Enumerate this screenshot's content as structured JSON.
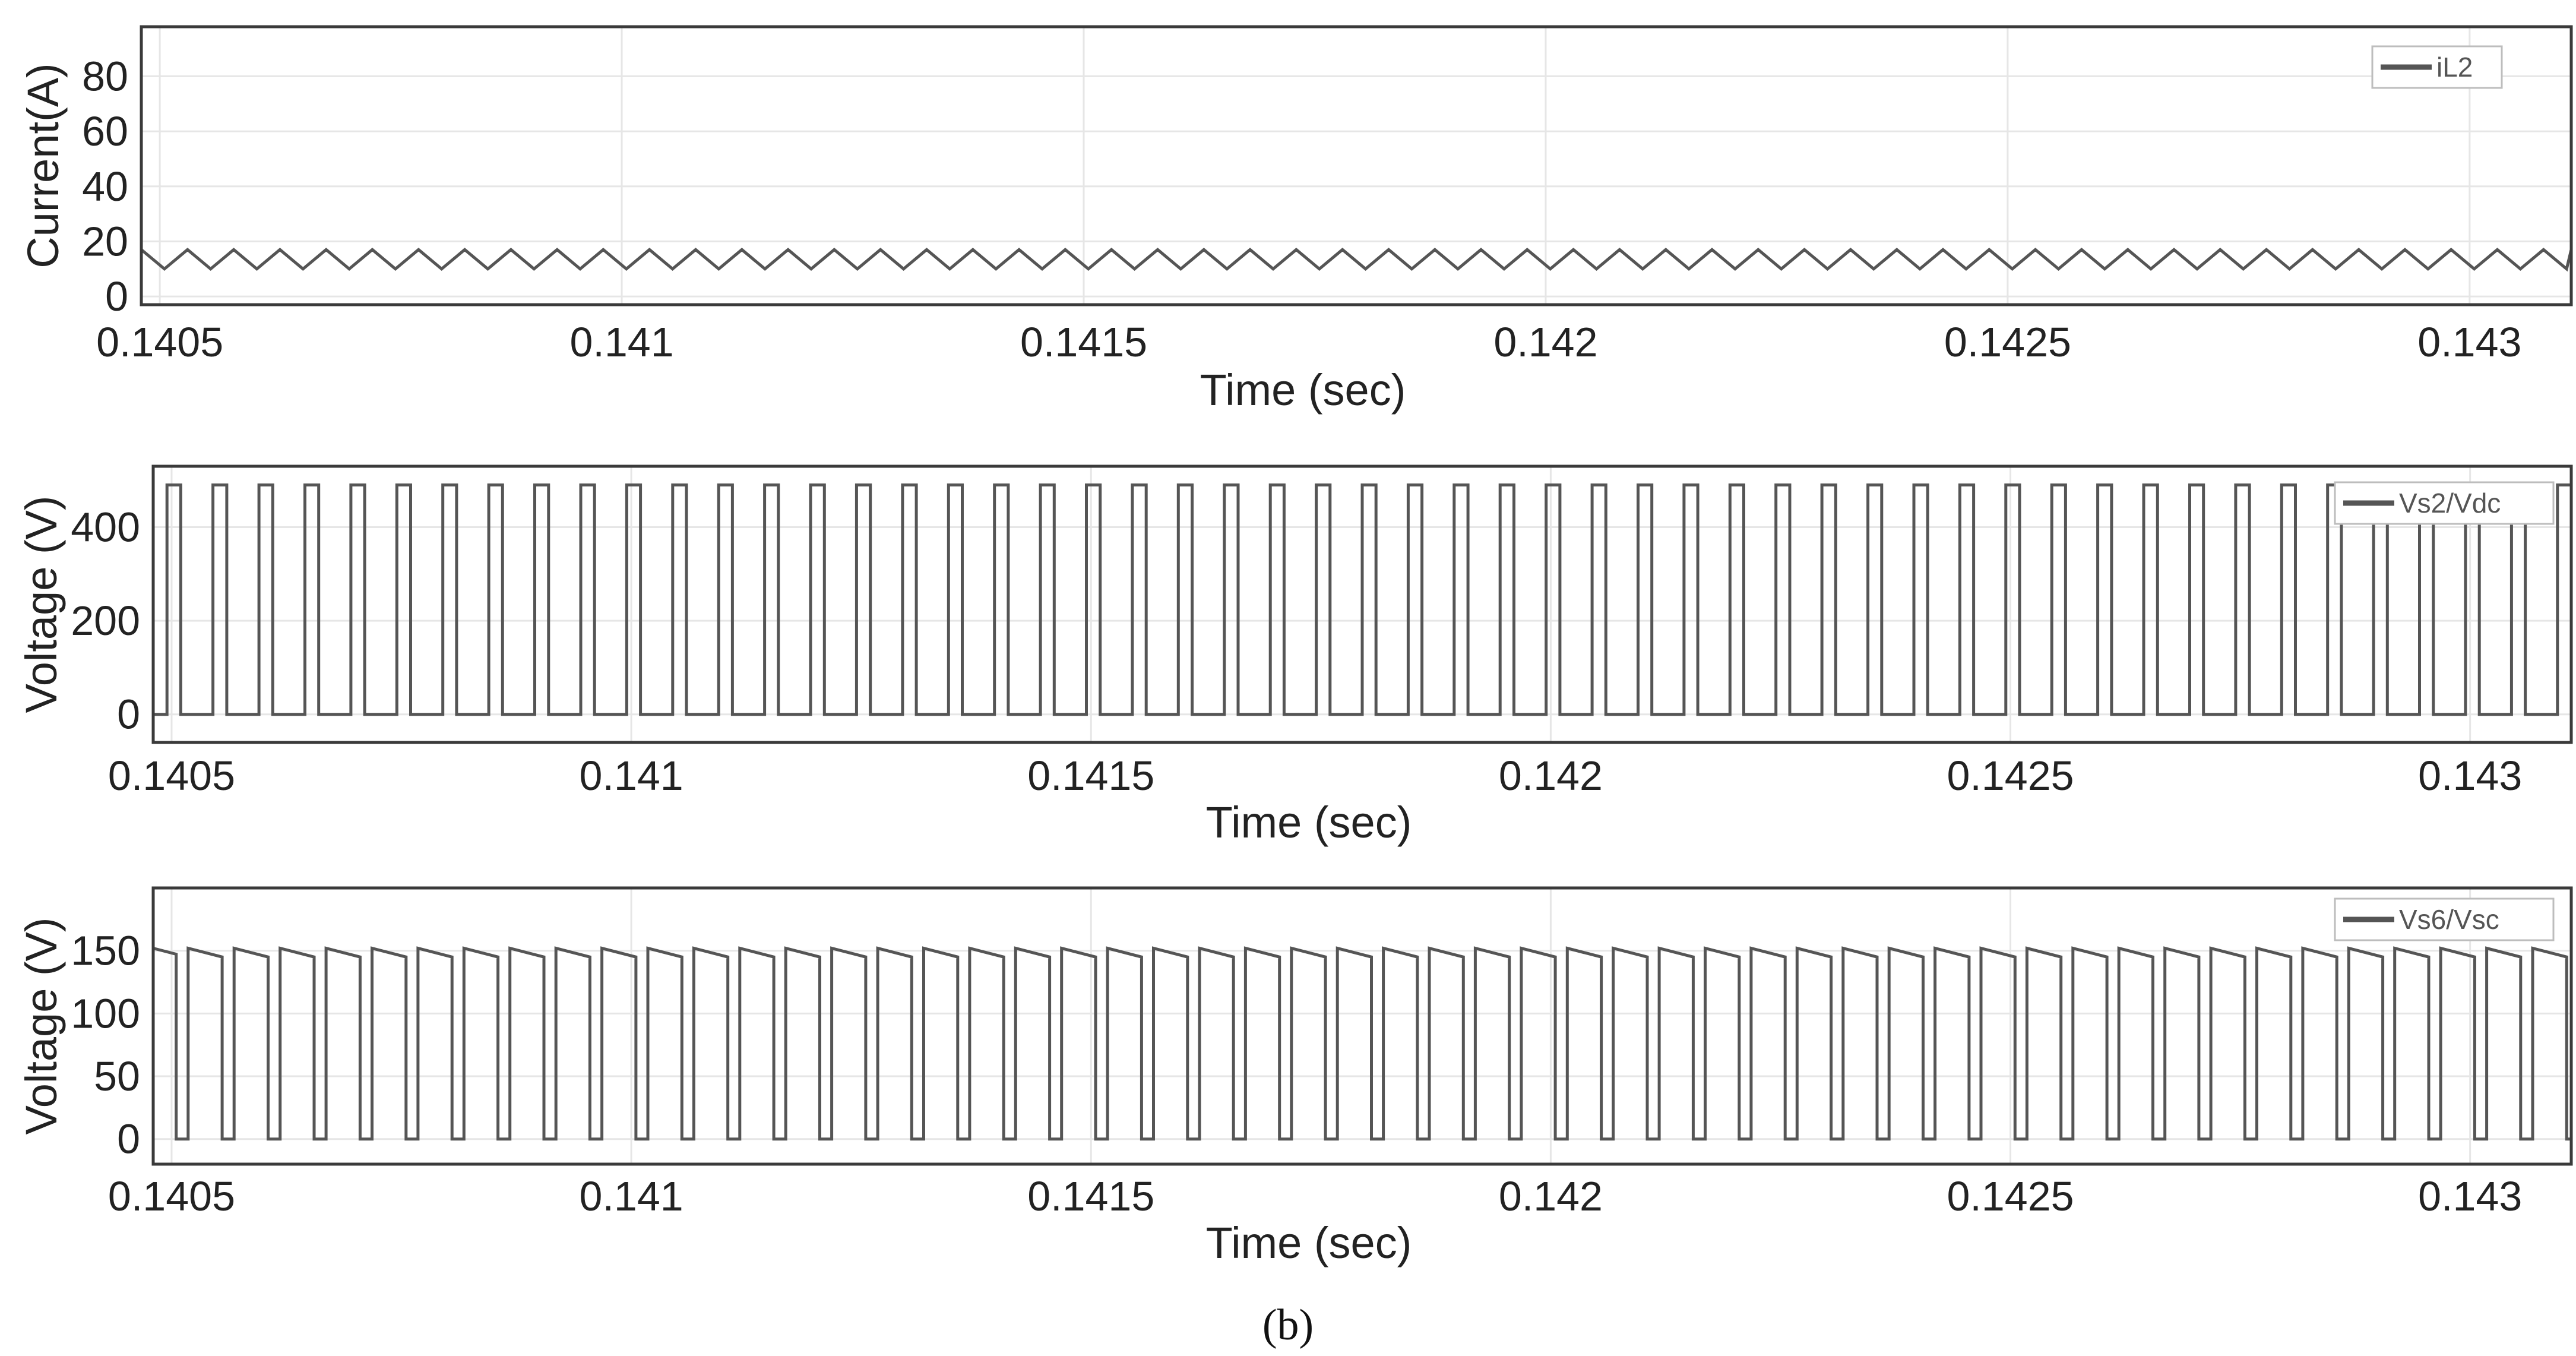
{
  "figure_label": "(b)",
  "chart_data": [
    {
      "type": "line",
      "xlabel": "Time (sec)",
      "ylabel": "Current(A)",
      "xlim": [
        0.14048,
        0.14311
      ],
      "ylim": [
        -3,
        98
      ],
      "xticks": [
        0.1405,
        0.141,
        0.1415,
        0.142,
        0.1425,
        0.143
      ],
      "xtick_labels": [
        "0.1405",
        "0.141",
        "0.1415",
        "0.142",
        "0.1425",
        "0.143"
      ],
      "yticks": [
        0,
        20,
        40,
        60,
        80
      ],
      "ytick_labels": [
        "0",
        "20",
        "40",
        "60",
        "80"
      ],
      "grid": true,
      "legend_position": "top-right",
      "series": [
        {
          "name": "iL2",
          "color": "#555555",
          "waveform": "triangle",
          "period": 5e-05,
          "phase": 0.14048,
          "min": 10,
          "max": 17
        }
      ]
    },
    {
      "type": "line",
      "xlabel": "Time (sec)",
      "ylabel": "Voltage (V)",
      "xlim": [
        0.14048,
        0.14311
      ],
      "ylim": [
        -60,
        530
      ],
      "xticks": [
        0.1405,
        0.141,
        0.1415,
        0.142,
        0.1425,
        0.143
      ],
      "xtick_labels": [
        "0.1405",
        "0.141",
        "0.1415",
        "0.142",
        "0.1425",
        "0.143"
      ],
      "yticks": [
        0,
        200,
        400
      ],
      "ytick_labels": [
        "0",
        "200",
        "400"
      ],
      "grid": true,
      "legend_position": "top-right",
      "series": [
        {
          "name": "Vs2/Vdc",
          "color": "#555555",
          "waveform": "pulse",
          "period": 5e-05,
          "first_rise": 0.140495,
          "pulse_width": 1.5e-05,
          "low": 0,
          "high": 490
        }
      ]
    },
    {
      "type": "line",
      "xlabel": "Time (sec)",
      "ylabel": "Voltage (V)",
      "xlim": [
        0.14048,
        0.14311
      ],
      "ylim": [
        -20,
        200
      ],
      "xticks": [
        0.1405,
        0.141,
        0.1415,
        0.142,
        0.1425,
        0.143
      ],
      "xtick_labels": [
        "0.1405",
        "0.141",
        "0.1415",
        "0.142",
        "0.1425",
        "0.143"
      ],
      "yticks": [
        0,
        50,
        100,
        150
      ],
      "ytick_labels": [
        "0",
        "50",
        "100",
        "150"
      ],
      "grid": true,
      "legend_position": "top-right",
      "series": [
        {
          "name": "Vs6/Vsc",
          "color": "#555555",
          "waveform": "pulse-sag",
          "period": 5e-05,
          "first_fall": 0.140505,
          "low_width": 1.3e-05,
          "low": 0,
          "high_start": 152,
          "high_end": 145
        }
      ]
    }
  ]
}
